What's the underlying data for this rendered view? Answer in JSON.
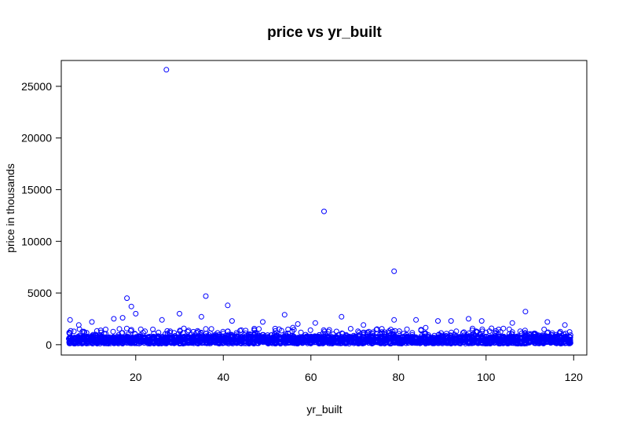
{
  "chart_data": {
    "type": "scatter",
    "title": "price vs yr_built",
    "xlabel": "yr_built",
    "ylabel": "price in thousands",
    "xlim": [
      3,
      123
    ],
    "ylim": [
      -1000,
      27500
    ],
    "xticks": [
      20,
      40,
      60,
      80,
      100,
      120
    ],
    "yticks": [
      0,
      5000,
      10000,
      15000,
      20000,
      25000
    ],
    "grid": false,
    "marker_color": "#0000ff",
    "highlight_points": [
      {
        "x": 27,
        "y": 26600
      },
      {
        "x": 63,
        "y": 12900
      },
      {
        "x": 79,
        "y": 7100
      },
      {
        "x": 18,
        "y": 4500
      },
      {
        "x": 36,
        "y": 4700
      },
      {
        "x": 41,
        "y": 3800
      },
      {
        "x": 19,
        "y": 3700
      },
      {
        "x": 109,
        "y": 3200
      },
      {
        "x": 30,
        "y": 3000
      },
      {
        "x": 20,
        "y": 3000
      },
      {
        "x": 54,
        "y": 2900
      },
      {
        "x": 67,
        "y": 2700
      },
      {
        "x": 35,
        "y": 2700
      },
      {
        "x": 17,
        "y": 2600
      },
      {
        "x": 96,
        "y": 2500
      },
      {
        "x": 79,
        "y": 2400
      },
      {
        "x": 84,
        "y": 2400
      },
      {
        "x": 26,
        "y": 2400
      },
      {
        "x": 5,
        "y": 2400
      },
      {
        "x": 15,
        "y": 2500
      },
      {
        "x": 42,
        "y": 2300
      },
      {
        "x": 89,
        "y": 2300
      },
      {
        "x": 92,
        "y": 2300
      },
      {
        "x": 99,
        "y": 2300
      },
      {
        "x": 114,
        "y": 2200
      },
      {
        "x": 106,
        "y": 2100
      },
      {
        "x": 10,
        "y": 2200
      },
      {
        "x": 49,
        "y": 2200
      },
      {
        "x": 61,
        "y": 2100
      },
      {
        "x": 57,
        "y": 2000
      },
      {
        "x": 72,
        "y": 1900
      },
      {
        "x": 118,
        "y": 1900
      },
      {
        "x": 7,
        "y": 1900
      }
    ],
    "bulk_band": {
      "description_range_x": [
        5,
        119
      ],
      "y_low": 100,
      "y_high": 1300,
      "y_median": 450
    }
  }
}
